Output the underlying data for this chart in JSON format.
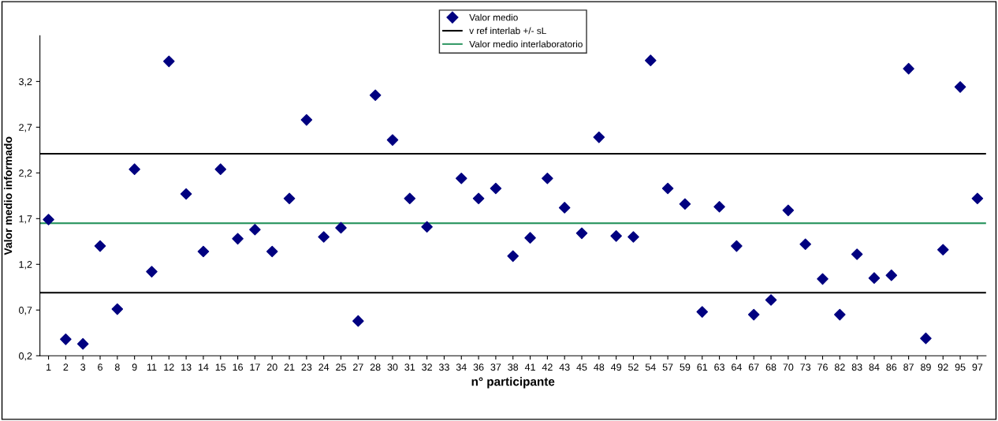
{
  "chart_data": {
    "type": "scatter",
    "xlabel": "n° participante",
    "ylabel": "Valor medio informado",
    "categories": [
      "1",
      "2",
      "3",
      "6",
      "8",
      "9",
      "11",
      "12",
      "13",
      "14",
      "15",
      "16",
      "17",
      "20",
      "21",
      "23",
      "24",
      "25",
      "27",
      "28",
      "30",
      "31",
      "32",
      "33",
      "34",
      "36",
      "37",
      "38",
      "41",
      "42",
      "43",
      "45",
      "48",
      "49",
      "52",
      "54",
      "57",
      "59",
      "61",
      "63",
      "64",
      "67",
      "68",
      "70",
      "73",
      "76",
      "82",
      "83",
      "84",
      "86",
      "87",
      "89",
      "92",
      "95",
      "97"
    ],
    "series": [
      {
        "name": "Valor medio",
        "color": "#000080",
        "marker": "diamond",
        "values": [
          1.69,
          0.38,
          0.33,
          1.4,
          0.71,
          2.24,
          1.12,
          3.42,
          1.97,
          1.34,
          2.24,
          1.48,
          1.58,
          1.34,
          1.92,
          2.78,
          1.5,
          1.6,
          0.58,
          3.05,
          2.56,
          1.92,
          1.61,
          null,
          2.14,
          1.92,
          2.03,
          1.29,
          1.49,
          2.14,
          1.82,
          1.54,
          2.59,
          1.51,
          1.5,
          3.43,
          2.03,
          1.86,
          0.68,
          1.83,
          1.4,
          0.65,
          0.81,
          1.79,
          1.42,
          1.04,
          0.65,
          1.31,
          1.05,
          1.08,
          3.34,
          0.39,
          1.36,
          3.14,
          1.92
        ]
      }
    ],
    "ref_lines": [
      {
        "axis": "y",
        "value": 2.41,
        "label": "v ref interlab +/- sL",
        "color": "#000000"
      },
      {
        "axis": "y",
        "value": 0.89,
        "label": null,
        "color": "#000000"
      },
      {
        "axis": "y",
        "value": 1.65,
        "label": "Valor medio interlaboratorio",
        "color": "#339966"
      }
    ],
    "ylim": [
      0.2,
      3.7
    ],
    "yticks": [
      {
        "value": 0.2,
        "label": "0,2"
      },
      {
        "value": 0.7,
        "label": "0,7"
      },
      {
        "value": 1.2,
        "label": "1,2"
      },
      {
        "value": 1.7,
        "label": "1,7"
      },
      {
        "value": 2.2,
        "label": "2,2"
      },
      {
        "value": 2.7,
        "label": "2,7"
      },
      {
        "value": 3.2,
        "label": "3,2"
      }
    ],
    "grid": false,
    "legend": "top"
  }
}
